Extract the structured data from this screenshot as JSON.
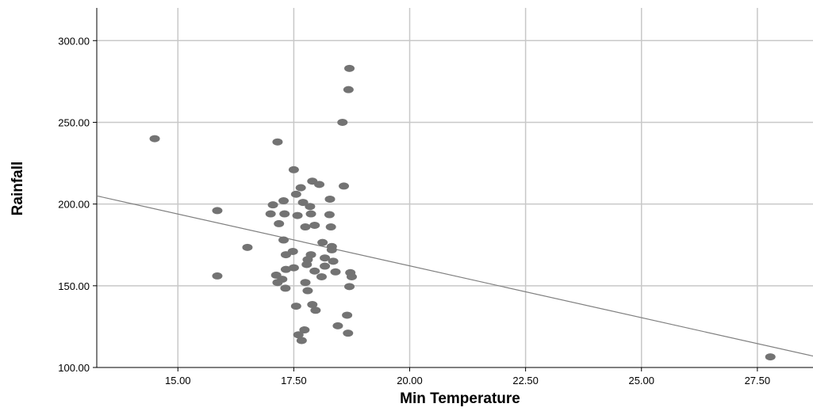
{
  "chart_data": {
    "type": "scatter",
    "title": "",
    "xlabel": "Min Temperature",
    "ylabel": "Rainfall",
    "xlim": [
      13.25,
      28.7
    ],
    "ylim": [
      100,
      320
    ],
    "x_ticks": [
      15,
      17.5,
      20,
      22.5,
      25,
      27.5
    ],
    "x_tick_labels": [
      "15.00",
      "17.50",
      "20.00",
      "22.50",
      "25.00",
      "27.50"
    ],
    "y_ticks": [
      100,
      150,
      200,
      250,
      300
    ],
    "y_tick_labels": [
      "100.00",
      "150.00",
      "200.00",
      "250.00",
      "300.00"
    ],
    "grid": true,
    "point_color": "#737373",
    "fit_line_color": "#7f7f7f",
    "grid_color": "#c8c8c8",
    "fit_line": {
      "x": [
        13.25,
        28.7
      ],
      "y": [
        205,
        107
      ]
    },
    "points": [
      {
        "x": 14.5,
        "y": 240
      },
      {
        "x": 17.15,
        "y": 238
      },
      {
        "x": 18.7,
        "y": 283
      },
      {
        "x": 18.68,
        "y": 270
      },
      {
        "x": 18.55,
        "y": 250
      },
      {
        "x": 17.5,
        "y": 221
      },
      {
        "x": 17.9,
        "y": 214
      },
      {
        "x": 18.05,
        "y": 212
      },
      {
        "x": 18.58,
        "y": 211
      },
      {
        "x": 17.65,
        "y": 210
      },
      {
        "x": 17.55,
        "y": 206
      },
      {
        "x": 18.28,
        "y": 203
      },
      {
        "x": 17.28,
        "y": 202
      },
      {
        "x": 17.7,
        "y": 201
      },
      {
        "x": 17.05,
        "y": 199.5
      },
      {
        "x": 17.85,
        "y": 198.5
      },
      {
        "x": 15.85,
        "y": 196
      },
      {
        "x": 17.0,
        "y": 194
      },
      {
        "x": 17.3,
        "y": 194
      },
      {
        "x": 17.58,
        "y": 193
      },
      {
        "x": 17.87,
        "y": 194
      },
      {
        "x": 18.27,
        "y": 193.5
      },
      {
        "x": 17.18,
        "y": 188
      },
      {
        "x": 17.75,
        "y": 186
      },
      {
        "x": 17.95,
        "y": 187
      },
      {
        "x": 18.3,
        "y": 186
      },
      {
        "x": 17.28,
        "y": 178
      },
      {
        "x": 18.12,
        "y": 176.5
      },
      {
        "x": 18.32,
        "y": 174
      },
      {
        "x": 18.32,
        "y": 172
      },
      {
        "x": 16.5,
        "y": 173.5
      },
      {
        "x": 17.48,
        "y": 171
      },
      {
        "x": 17.87,
        "y": 169
      },
      {
        "x": 17.33,
        "y": 169
      },
      {
        "x": 17.8,
        "y": 166
      },
      {
        "x": 18.17,
        "y": 167
      },
      {
        "x": 18.35,
        "y": 165
      },
      {
        "x": 17.78,
        "y": 163
      },
      {
        "x": 18.17,
        "y": 162
      },
      {
        "x": 17.5,
        "y": 161
      },
      {
        "x": 17.33,
        "y": 160
      },
      {
        "x": 17.95,
        "y": 159
      },
      {
        "x": 18.4,
        "y": 158.5
      },
      {
        "x": 18.72,
        "y": 158
      },
      {
        "x": 17.12,
        "y": 156.5
      },
      {
        "x": 15.85,
        "y": 156
      },
      {
        "x": 18.1,
        "y": 155.5
      },
      {
        "x": 18.75,
        "y": 155.5
      },
      {
        "x": 17.25,
        "y": 154
      },
      {
        "x": 17.15,
        "y": 152
      },
      {
        "x": 17.75,
        "y": 152
      },
      {
        "x": 18.7,
        "y": 149.5
      },
      {
        "x": 17.32,
        "y": 148.5
      },
      {
        "x": 17.8,
        "y": 147
      },
      {
        "x": 17.55,
        "y": 137.5
      },
      {
        "x": 17.9,
        "y": 138.5
      },
      {
        "x": 17.97,
        "y": 135
      },
      {
        "x": 18.65,
        "y": 132
      },
      {
        "x": 18.45,
        "y": 125.5
      },
      {
        "x": 17.73,
        "y": 123
      },
      {
        "x": 18.67,
        "y": 121
      },
      {
        "x": 17.6,
        "y": 120
      },
      {
        "x": 17.67,
        "y": 116.5
      },
      {
        "x": 27.78,
        "y": 106.5
      }
    ]
  }
}
